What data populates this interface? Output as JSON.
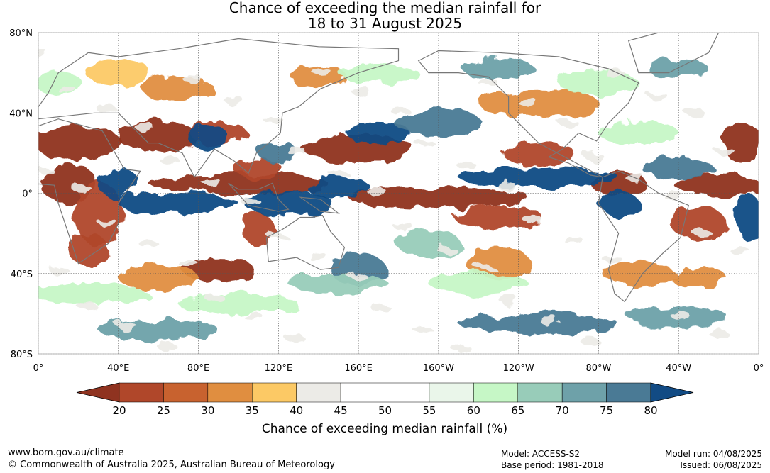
{
  "title": {
    "line1": "Chance of exceeding the median rainfall for",
    "line2": "18 to 31 August 2025"
  },
  "map": {
    "lat_labels": [
      "80°N",
      "40°N",
      "0°",
      "40°S",
      "80°S"
    ],
    "lat_values": [
      80,
      40,
      0,
      -40,
      -80
    ],
    "lon_labels": [
      "0°",
      "40°E",
      "80°E",
      "120°E",
      "160°E",
      "160°W",
      "120°W",
      "80°W",
      "40°W",
      "0°"
    ],
    "lon_values": [
      0,
      40,
      80,
      120,
      160,
      200,
      240,
      280,
      320,
      360
    ],
    "grid_color": "#555555",
    "coastline_color": "#777777"
  },
  "colorbar": {
    "label": "Chance of exceeding median rainfall (%)",
    "ticks": [
      "20",
      "25",
      "30",
      "35",
      "40",
      "45",
      "50",
      "55",
      "60",
      "65",
      "70",
      "75",
      "80"
    ],
    "colors": [
      "#8f3320",
      "#b0472a",
      "#c8622f",
      "#e08e40",
      "#fcc965",
      "#ecebe7",
      "#ffffff",
      "#ffffff",
      "#eaf6ea",
      "#c6f7c6",
      "#98ccb9",
      "#6ea1a9",
      "#4a7a95",
      "#124b84"
    ]
  },
  "footer": {
    "url": "www.bom.gov.au/climate",
    "copyright": "© Commonwealth of Australia 2025, Australian Bureau of Meteorology",
    "model": "Model: ACCESS-S2",
    "base_period": "Base period: 1981-2018",
    "model_run": "Model run: 04/08/2025",
    "issued": "Issued: 06/08/2025"
  }
}
